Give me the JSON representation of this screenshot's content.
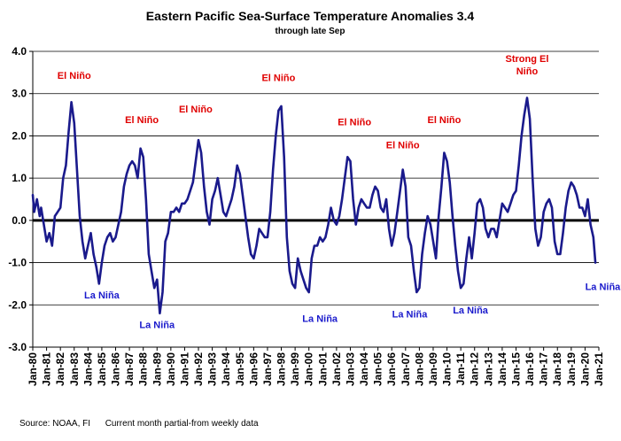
{
  "chart_data": {
    "type": "line",
    "title": "Eastern Pacific  Sea-Surface Temperature Anomalies 3.4",
    "subtitle": "through late Sep",
    "xlabel": "",
    "ylabel": "",
    "ylim": [
      -3.0,
      4.0
    ],
    "xlim": [
      "Jan-80",
      "Jan-21"
    ],
    "y_ticks": [
      "4.0",
      "3.0",
      "2.0",
      "1.0",
      "0.0",
      "-1.0",
      "-2.0",
      "-3.0"
    ],
    "x_ticks": [
      "Jan-80",
      "Jan-81",
      "Jan-82",
      "Jan-83",
      "Jan-84",
      "Jan-85",
      "Jan-86",
      "Jan-87",
      "Jan-88",
      "Jan-89",
      "Jan-90",
      "Jan-91",
      "Jan-92",
      "Jan-93",
      "Jan-94",
      "Jan-95",
      "Jan-96",
      "Jan-97",
      "Jan-98",
      "Jan-99",
      "Jan-00",
      "Jan-01",
      "Jan-02",
      "Jan-03",
      "Jan-04",
      "Jan-05",
      "Jan-06",
      "Jan-07",
      "Jan-08",
      "Jan-09",
      "Jan-10",
      "Jan-11",
      "Jan-12",
      "Jan-13",
      "Jan-14",
      "Jan-15",
      "Jan-16",
      "Jan-17",
      "Jan-18",
      "Jan-19",
      "Jan-20",
      "Jan-21"
    ],
    "grid": true,
    "legend": "none",
    "line_color": "#1a1a8c",
    "series": [
      {
        "x": [
          1980.0,
          1980.1,
          1980.3,
          1980.5,
          1980.6,
          1980.8,
          1981.0,
          1981.2,
          1981.4,
          1981.6,
          1981.8,
          1982.0,
          1982.2,
          1982.4,
          1982.6,
          1982.8,
          1983.0,
          1983.2,
          1983.4,
          1983.6,
          1983.8,
          1984.0,
          1984.2,
          1984.4,
          1984.6,
          1984.8,
          1985.0,
          1985.2,
          1985.4,
          1985.6,
          1985.8,
          1986.0,
          1986.2,
          1986.4,
          1986.6,
          1986.8,
          1987.0,
          1987.2,
          1987.4,
          1987.6,
          1987.8,
          1988.0,
          1988.2,
          1988.4,
          1988.6,
          1988.8,
          1989.0,
          1989.2,
          1989.4,
          1989.6,
          1989.8,
          1990.0,
          1990.2,
          1990.4,
          1990.6,
          1990.8,
          1991.0,
          1991.2,
          1991.4,
          1991.6,
          1991.8,
          1992.0,
          1992.2,
          1992.4,
          1992.6,
          1992.8,
          1993.0,
          1993.2,
          1993.4,
          1993.6,
          1993.8,
          1994.0,
          1994.2,
          1994.4,
          1994.6,
          1994.8,
          1995.0,
          1995.2,
          1995.4,
          1995.6,
          1995.8,
          1996.0,
          1996.2,
          1996.4,
          1996.6,
          1996.8,
          1997.0,
          1997.2,
          1997.4,
          1997.6,
          1997.8,
          1998.0,
          1998.2,
          1998.4,
          1998.6,
          1998.8,
          1999.0,
          1999.2,
          1999.4,
          1999.6,
          1999.8,
          2000.0,
          2000.2,
          2000.4,
          2000.6,
          2000.8,
          2001.0,
          2001.2,
          2001.4,
          2001.6,
          2001.8,
          2002.0,
          2002.2,
          2002.4,
          2002.6,
          2002.8,
          2003.0,
          2003.2,
          2003.4,
          2003.6,
          2003.8,
          2004.0,
          2004.2,
          2004.4,
          2004.6,
          2004.8,
          2005.0,
          2005.2,
          2005.4,
          2005.6,
          2005.8,
          2006.0,
          2006.2,
          2006.4,
          2006.6,
          2006.8,
          2007.0,
          2007.2,
          2007.4,
          2007.6,
          2007.8,
          2008.0,
          2008.2,
          2008.4,
          2008.6,
          2008.8,
          2009.0,
          2009.2,
          2009.4,
          2009.6,
          2009.8,
          2010.0,
          2010.2,
          2010.4,
          2010.6,
          2010.8,
          2011.0,
          2011.2,
          2011.4,
          2011.6,
          2011.8,
          2012.0,
          2012.2,
          2012.4,
          2012.6,
          2012.8,
          2013.0,
          2013.2,
          2013.4,
          2013.6,
          2013.8,
          2014.0,
          2014.2,
          2014.4,
          2014.6,
          2014.8,
          2015.0,
          2015.2,
          2015.4,
          2015.6,
          2015.8,
          2016.0,
          2016.2,
          2016.4,
          2016.6,
          2016.8,
          2017.0,
          2017.2,
          2017.4,
          2017.6,
          2017.8,
          2018.0,
          2018.2,
          2018.4,
          2018.6,
          2018.8,
          2019.0,
          2019.2,
          2019.4,
          2019.6,
          2019.8,
          2020.0,
          2020.2,
          2020.4,
          2020.6,
          2020.75
        ],
        "values": [
          0.6,
          0.2,
          0.5,
          0.1,
          0.3,
          -0.1,
          -0.5,
          -0.3,
          -0.6,
          0.1,
          0.2,
          0.3,
          1.0,
          1.3,
          2.1,
          2.8,
          2.3,
          1.2,
          0.1,
          -0.5,
          -0.9,
          -0.6,
          -0.3,
          -0.8,
          -1.1,
          -1.5,
          -1.0,
          -0.6,
          -0.4,
          -0.3,
          -0.5,
          -0.4,
          -0.1,
          0.2,
          0.8,
          1.1,
          1.3,
          1.4,
          1.3,
          1.0,
          1.7,
          1.5,
          0.5,
          -0.8,
          -1.2,
          -1.6,
          -1.4,
          -2.2,
          -1.7,
          -0.5,
          -0.3,
          0.2,
          0.2,
          0.3,
          0.2,
          0.4,
          0.4,
          0.5,
          0.7,
          0.9,
          1.4,
          1.9,
          1.6,
          0.8,
          0.2,
          -0.1,
          0.5,
          0.7,
          1.0,
          0.6,
          0.2,
          0.1,
          0.3,
          0.5,
          0.8,
          1.3,
          1.1,
          0.6,
          0.1,
          -0.4,
          -0.8,
          -0.9,
          -0.6,
          -0.2,
          -0.3,
          -0.4,
          -0.4,
          0.2,
          1.2,
          2.0,
          2.6,
          2.7,
          1.5,
          -0.4,
          -1.2,
          -1.5,
          -1.6,
          -0.9,
          -1.2,
          -1.4,
          -1.6,
          -1.7,
          -0.9,
          -0.6,
          -0.6,
          -0.4,
          -0.5,
          -0.4,
          -0.1,
          0.3,
          0.0,
          -0.1,
          0.1,
          0.5,
          1.0,
          1.5,
          1.4,
          0.5,
          -0.1,
          0.3,
          0.5,
          0.4,
          0.3,
          0.3,
          0.6,
          0.8,
          0.7,
          0.3,
          0.2,
          0.5,
          -0.2,
          -0.6,
          -0.3,
          0.2,
          0.7,
          1.2,
          0.8,
          -0.4,
          -0.6,
          -1.2,
          -1.7,
          -1.6,
          -0.8,
          -0.3,
          0.1,
          -0.1,
          -0.5,
          -0.9,
          0.1,
          0.8,
          1.6,
          1.4,
          0.9,
          0.1,
          -0.6,
          -1.2,
          -1.6,
          -1.5,
          -0.9,
          -0.4,
          -0.9,
          -0.3,
          0.4,
          0.5,
          0.3,
          -0.2,
          -0.4,
          -0.2,
          -0.2,
          -0.4,
          0.0,
          0.4,
          0.3,
          0.2,
          0.4,
          0.6,
          0.7,
          1.3,
          2.0,
          2.5,
          2.9,
          2.4,
          1.0,
          -0.2,
          -0.6,
          -0.4,
          0.2,
          0.4,
          0.5,
          0.3,
          -0.5,
          -0.8,
          -0.8,
          -0.3,
          0.3,
          0.7,
          0.9,
          0.8,
          0.6,
          0.3,
          0.3,
          0.1,
          0.5,
          -0.1,
          -0.4,
          -1.0
        ]
      }
    ],
    "annotations": [
      {
        "label": "El Niño",
        "x": 1983.0,
        "y": 3.35,
        "color": "#e00000"
      },
      {
        "label": "El Niño",
        "x": 1987.9,
        "y": 2.3,
        "color": "#e00000"
      },
      {
        "label": "El Niño",
        "x": 1991.8,
        "y": 2.55,
        "color": "#e00000"
      },
      {
        "label": "El Niño",
        "x": 1997.8,
        "y": 3.3,
        "color": "#e00000"
      },
      {
        "label": "El Niño",
        "x": 2003.3,
        "y": 2.25,
        "color": "#e00000"
      },
      {
        "label": "El Niño",
        "x": 2006.8,
        "y": 1.7,
        "color": "#e00000"
      },
      {
        "label": "El Niño",
        "x": 2009.8,
        "y": 2.3,
        "color": "#e00000"
      },
      {
        "label": "Strong El",
        "x": 2015.8,
        "y": 3.75,
        "color": "#e00000"
      },
      {
        "label": "Niño",
        "x": 2015.8,
        "y": 3.45,
        "color": "#e00000"
      },
      {
        "label": "La Niña",
        "x": 1985.0,
        "y": -1.85,
        "color": "#1a1acc"
      },
      {
        "label": "La Niña",
        "x": 1989.0,
        "y": -2.55,
        "color": "#1a1acc"
      },
      {
        "label": "La Niña",
        "x": 2000.8,
        "y": -2.4,
        "color": "#1a1acc"
      },
      {
        "label": "La Niña",
        "x": 2007.3,
        "y": -2.3,
        "color": "#1a1acc"
      },
      {
        "label": "La Niña",
        "x": 2011.7,
        "y": -2.2,
        "color": "#1a1acc"
      },
      {
        "label": "La Niña?",
        "x": 2021.5,
        "y": -1.65,
        "color": "#1a1acc"
      }
    ],
    "footnote": "Source: NOAA, FI      Current month partial-from weekly data"
  }
}
